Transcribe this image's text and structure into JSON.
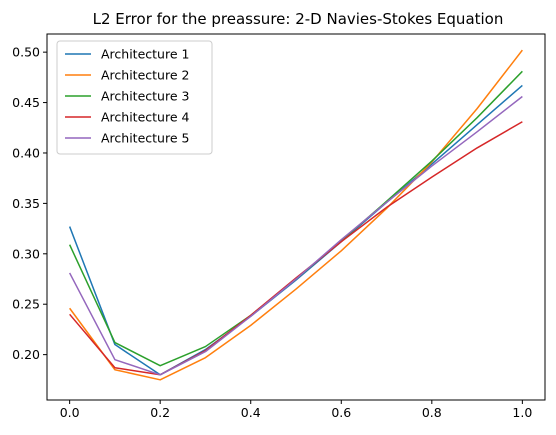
{
  "chart_data": {
    "type": "line",
    "title": "L2 Error for the preassure: 2-D Navies-Stokes Equation",
    "xlabel": "",
    "ylabel": "",
    "x": [
      0.0,
      0.1,
      0.2,
      0.3,
      0.4,
      0.5,
      0.6,
      0.7,
      0.8,
      0.9,
      1.0
    ],
    "xlim": [
      -0.05,
      1.05
    ],
    "ylim": [
      0.155,
      0.518
    ],
    "xticks": [
      0.0,
      0.2,
      0.4,
      0.6,
      0.8,
      1.0
    ],
    "xtick_labels": [
      "0.0",
      "0.2",
      "0.4",
      "0.6",
      "0.8",
      "1.0"
    ],
    "yticks": [
      0.2,
      0.25,
      0.3,
      0.35,
      0.4,
      0.45,
      0.5
    ],
    "ytick_labels": [
      "0.20",
      "0.25",
      "0.30",
      "0.35",
      "0.40",
      "0.45",
      "0.50"
    ],
    "grid": false,
    "legend_position": "upper-left",
    "series": [
      {
        "name": "Architecture 1",
        "color": "#1f77b4",
        "values": [
          0.327,
          0.21,
          0.18,
          0.205,
          0.238,
          0.274,
          0.312,
          0.351,
          0.389,
          0.428,
          0.467
        ]
      },
      {
        "name": "Architecture 2",
        "color": "#ff7f0e",
        "values": [
          0.246,
          0.185,
          0.175,
          0.197,
          0.229,
          0.265,
          0.303,
          0.345,
          0.391,
          0.444,
          0.502
        ]
      },
      {
        "name": "Architecture 3",
        "color": "#2ca02c",
        "values": [
          0.309,
          0.212,
          0.189,
          0.208,
          0.239,
          0.275,
          0.313,
          0.352,
          0.392,
          0.435,
          0.481
        ]
      },
      {
        "name": "Architecture 4",
        "color": "#d62728",
        "values": [
          0.24,
          0.187,
          0.18,
          0.204,
          0.239,
          0.276,
          0.312,
          0.346,
          0.376,
          0.405,
          0.431
        ]
      },
      {
        "name": "Architecture 5",
        "color": "#9467bd",
        "values": [
          0.281,
          0.195,
          0.18,
          0.203,
          0.238,
          0.275,
          0.314,
          0.351,
          0.387,
          0.421,
          0.456
        ]
      }
    ]
  }
}
